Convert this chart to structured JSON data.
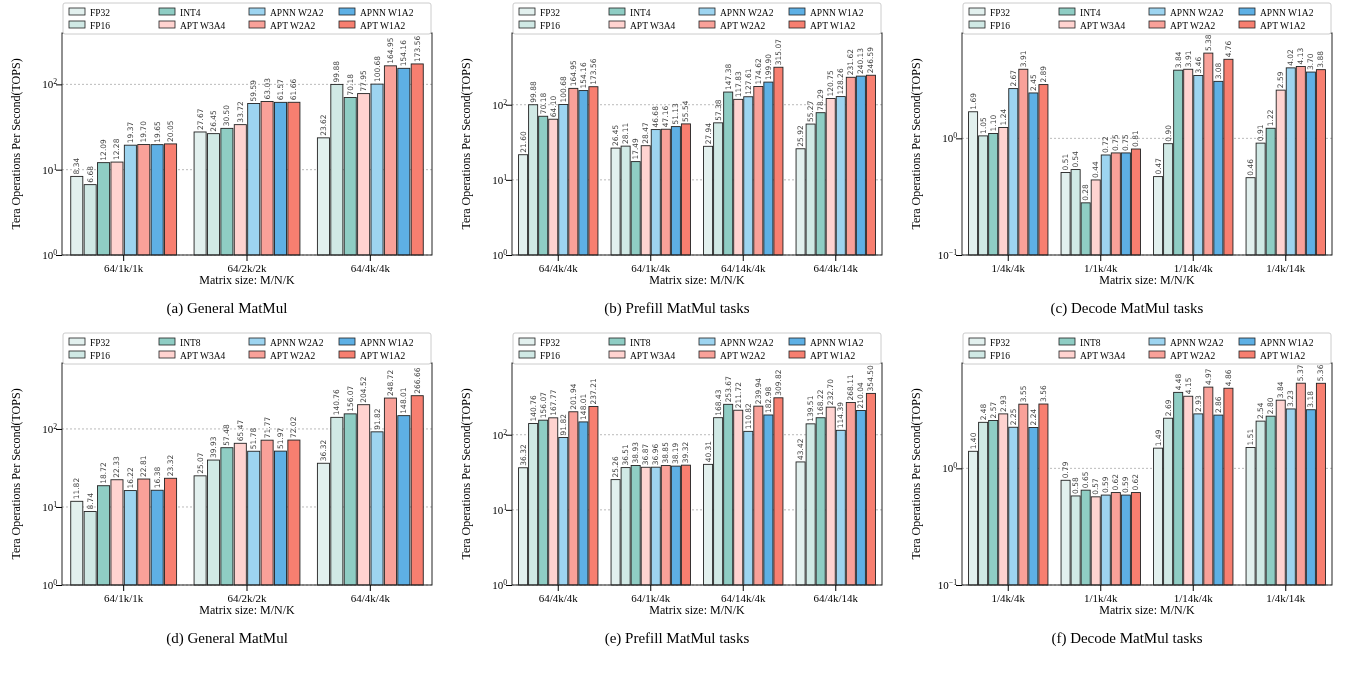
{
  "chart_data": [
    {
      "type": "bar",
      "title": "(a) General MatMul",
      "xlabel": "Matrix size: M/N/K",
      "ylabel": "Tera Operations Per Second(TOPS)",
      "categories": [
        "64/1k/1k",
        "64/2k/2k",
        "64/4k/4k"
      ],
      "log": true,
      "ylim": [
        1,
        400
      ],
      "yticks": [
        {
          "value": 1,
          "label": "10$^{0}$"
        },
        {
          "value": 10,
          "label": "10$^{1}$"
        },
        {
          "value": 100,
          "label": "10$^{2}$"
        }
      ],
      "grid": "y",
      "legend": "top",
      "series": [
        {
          "name": "FP32",
          "color": "#e2f0ee",
          "values": [
            8.34,
            27.67,
            23.62
          ],
          "value_labels": [
            "8.34",
            "27.67",
            "23.62"
          ]
        },
        {
          "name": "FP16",
          "color": "#d0e9e5",
          "values": [
            6.68,
            26.45,
            99.88
          ],
          "value_labels": [
            "6.68",
            "26.45",
            "99.88"
          ]
        },
        {
          "name": "INT4",
          "color": "#8fcdc4",
          "values": [
            12.09,
            30.5,
            70.18
          ],
          "value_labels": [
            "12.09",
            "30.50",
            "70.18"
          ]
        },
        {
          "name": "APT W3A4",
          "color": "#ffd3d0",
          "values": [
            12.28,
            33.72,
            77.95
          ],
          "value_labels": [
            "12.28",
            "33.72",
            "77.95"
          ]
        },
        {
          "name": "APNN W2A2",
          "color": "#9dd4f0",
          "values": [
            19.37,
            59.59,
            100.68
          ],
          "value_labels": [
            "19.37",
            "59.59",
            "100.68"
          ]
        },
        {
          "name": "APT W2A2",
          "color": "#f9a199",
          "values": [
            19.7,
            63.03,
            164.95
          ],
          "value_labels": [
            "19.70",
            "63.03",
            "164.95"
          ]
        },
        {
          "name": "APNN W1A2",
          "color": "#5eb0e5",
          "values": [
            19.65,
            61.57,
            154.16
          ],
          "value_labels": [
            "19.65",
            "61.57",
            "154.16"
          ]
        },
        {
          "name": "APT W1A2",
          "color": "#f77f70",
          "values": [
            20.05,
            61.66,
            173.56
          ],
          "value_labels": [
            "20.05",
            "61.66",
            "173.56"
          ]
        }
      ]
    },
    {
      "type": "bar",
      "title": "(b) Prefill MatMul tasks",
      "xlabel": "Matrix size: M/N/K",
      "ylabel": "Tera Operations Per Second(TOPS)",
      "categories": [
        "64/4k/4k",
        "64/1k/4k",
        "64/14k/4k",
        "64/4k/14k"
      ],
      "log": true,
      "ylim": [
        1,
        900
      ],
      "yticks": [
        {
          "value": 1,
          "label": "10$^{0}$"
        },
        {
          "value": 10,
          "label": "10$^{1}$"
        },
        {
          "value": 100,
          "label": "10$^{2}$"
        }
      ],
      "grid": "y",
      "legend": "top",
      "series": [
        {
          "name": "FP32",
          "color": "#e2f0ee",
          "values": [
            21.6,
            26.45,
            27.94,
            25.92
          ],
          "value_labels": [
            "21.60",
            "26.45",
            "27.94",
            "25.92"
          ]
        },
        {
          "name": "FP16",
          "color": "#d0e9e5",
          "values": [
            99.88,
            28.11,
            57.38,
            55.27
          ],
          "value_labels": [
            "99.88",
            "28.11",
            "57.38",
            "55.27"
          ]
        },
        {
          "name": "INT4",
          "color": "#8fcdc4",
          "values": [
            70.18,
            17.49,
            147.38,
            78.29
          ],
          "value_labels": [
            "70.18",
            "17.49",
            "147.38",
            "78.29"
          ]
        },
        {
          "name": "APT W3A4",
          "color": "#ffd3d0",
          "values": [
            64.1,
            28.47,
            117.83,
            120.75
          ],
          "value_labels": [
            "64.10",
            "28.47",
            "117.83",
            "120.75"
          ]
        },
        {
          "name": "APNN W2A2",
          "color": "#9dd4f0",
          "values": [
            100.68,
            46.68,
            127.61,
            128.26
          ],
          "value_labels": [
            "100.68",
            "46.68",
            "127.61",
            "128.26"
          ]
        },
        {
          "name": "APT W2A2",
          "color": "#f9a199",
          "values": [
            164.95,
            47.16,
            174.62,
            231.62
          ],
          "value_labels": [
            "164.95",
            "47.16",
            "174.62",
            "231.62"
          ]
        },
        {
          "name": "APNN W1A2",
          "color": "#5eb0e5",
          "values": [
            154.16,
            51.13,
            199.9,
            240.13
          ],
          "value_labels": [
            "154.16",
            "51.13",
            "199.90",
            "240.13"
          ]
        },
        {
          "name": "APT W1A2",
          "color": "#f77f70",
          "values": [
            173.56,
            55.54,
            315.07,
            246.59
          ],
          "value_labels": [
            "173.56",
            "55.54",
            "315.07",
            "246.59"
          ]
        }
      ]
    },
    {
      "type": "bar",
      "title": "(c) Decode MatMul tasks",
      "xlabel": "Matrix size: M/N/K",
      "ylabel": "Tera Operations Per Second(TOPS)",
      "categories": [
        "1/4k/4k",
        "1/1k/4k",
        "1/14k/4k",
        "1/4k/14k"
      ],
      "log": true,
      "ylim": [
        0.1,
        8
      ],
      "yticks": [
        {
          "value": 0.1,
          "label": "10$^{−1}$"
        },
        {
          "value": 1,
          "label": "10$^{0}$"
        }
      ],
      "grid": "y",
      "legend": "top",
      "series": [
        {
          "name": "FP32",
          "color": "#e2f0ee",
          "values": [
            1.69,
            0.51,
            0.47,
            0.46
          ],
          "value_labels": [
            "1.69",
            "0.51",
            "0.47",
            "0.46"
          ]
        },
        {
          "name": "FP16",
          "color": "#d0e9e5",
          "values": [
            1.05,
            0.54,
            0.9,
            0.91
          ],
          "value_labels": [
            "1.05",
            "0.54",
            "0.90",
            "0.91"
          ]
        },
        {
          "name": "INT4",
          "color": "#8fcdc4",
          "values": [
            1.1,
            0.28,
            3.84,
            1.22
          ],
          "value_labels": [
            "1.10",
            "0.28",
            "3.84",
            "1.22"
          ]
        },
        {
          "name": "APT W3A4",
          "color": "#ffd3d0",
          "values": [
            1.24,
            0.44,
            3.91,
            2.59
          ],
          "value_labels": [
            "1.24",
            "0.44",
            "3.91",
            "2.59"
          ]
        },
        {
          "name": "APNN W2A2",
          "color": "#9dd4f0",
          "values": [
            2.67,
            0.72,
            3.46,
            4.02
          ],
          "value_labels": [
            "2.67",
            "0.72",
            "3.46",
            "4.02"
          ]
        },
        {
          "name": "APT W2A2",
          "color": "#f9a199",
          "values": [
            3.91,
            0.75,
            5.38,
            4.13
          ],
          "value_labels": [
            "3.91",
            "0.75",
            "5.38",
            "4.13"
          ]
        },
        {
          "name": "APNN W1A2",
          "color": "#5eb0e5",
          "values": [
            2.45,
            0.75,
            3.08,
            3.7
          ],
          "value_labels": [
            "2.45",
            "0.75",
            "3.08",
            "3.70"
          ]
        },
        {
          "name": "APT W1A2",
          "color": "#f77f70",
          "values": [
            2.89,
            0.81,
            4.76,
            3.88
          ],
          "value_labels": [
            "2.89",
            "0.81",
            "4.76",
            "3.88"
          ]
        }
      ]
    },
    {
      "type": "bar",
      "title": "(d) General MatMul",
      "xlabel": "Matrix size: M/N/K",
      "ylabel": "Tera Operations Per Second(TOPS)",
      "categories": [
        "64/1k/1k",
        "64/2k/2k",
        "64/4k/4k"
      ],
      "log": true,
      "ylim": [
        1,
        700
      ],
      "yticks": [
        {
          "value": 1,
          "label": "10$^{0}$"
        },
        {
          "value": 10,
          "label": "10$^{1}$"
        },
        {
          "value": 100,
          "label": "10$^{2}$"
        }
      ],
      "grid": "y",
      "legend": "top",
      "series": [
        {
          "name": "FP32",
          "color": "#e2f0ee",
          "values": [
            11.82,
            25.07,
            36.32
          ],
          "value_labels": [
            "11.82",
            "25.07",
            "36.32"
          ]
        },
        {
          "name": "FP16",
          "color": "#d0e9e5",
          "values": [
            8.74,
            39.93,
            140.76
          ],
          "value_labels": [
            "8.74",
            "39.93",
            "140.76"
          ]
        },
        {
          "name": "INT8",
          "color": "#8fcdc4",
          "values": [
            18.72,
            57.48,
            156.07
          ],
          "value_labels": [
            "18.72",
            "57.48",
            "156.07"
          ]
        },
        {
          "name": "APT W3A4",
          "color": "#ffd3d0",
          "values": [
            22.33,
            65.47,
            204.52
          ],
          "value_labels": [
            "22.33",
            "65.47",
            "204.52"
          ]
        },
        {
          "name": "APNN W2A2",
          "color": "#9dd4f0",
          "values": [
            16.22,
            51.78,
            91.82
          ],
          "value_labels": [
            "16.22",
            "51.78",
            "91.82"
          ]
        },
        {
          "name": "APT W2A2",
          "color": "#f9a199",
          "values": [
            22.81,
            71.77,
            248.72
          ],
          "value_labels": [
            "22.81",
            "71.77",
            "248.72"
          ]
        },
        {
          "name": "APNN W1A2",
          "color": "#5eb0e5",
          "values": [
            16.38,
            51.97,
            148.01
          ],
          "value_labels": [
            "16.38",
            "51.97",
            "148.01"
          ]
        },
        {
          "name": "APT W1A2",
          "color": "#f77f70",
          "values": [
            23.32,
            72.02,
            266.66
          ],
          "value_labels": [
            "23.32",
            "72.02",
            "266.66"
          ]
        }
      ]
    },
    {
      "type": "bar",
      "title": "(e) Prefill MatMul tasks",
      "xlabel": "Matrix size: M/N/K",
      "ylabel": "Tera Operations Per Second(TOPS)",
      "categories": [
        "64/4k/4k",
        "64/1k/4k",
        "64/14k/4k",
        "64/4k/14k"
      ],
      "log": true,
      "ylim": [
        1,
        900
      ],
      "yticks": [
        {
          "value": 1,
          "label": "10$^{0}$"
        },
        {
          "value": 10,
          "label": "10$^{1}$"
        },
        {
          "value": 100,
          "label": "10$^{2}$"
        }
      ],
      "grid": "y",
      "legend": "top",
      "series": [
        {
          "name": "FP32",
          "color": "#e2f0ee",
          "values": [
            36.32,
            25.26,
            40.31,
            43.42
          ],
          "value_labels": [
            "36.32",
            "25.26",
            "40.31",
            "43.42"
          ]
        },
        {
          "name": "FP16",
          "color": "#d0e9e5",
          "values": [
            140.76,
            36.51,
            168.43,
            139.51
          ],
          "value_labels": [
            "140.76",
            "36.51",
            "168.43",
            "139.51"
          ]
        },
        {
          "name": "INT8",
          "color": "#8fcdc4",
          "values": [
            156.07,
            38.93,
            253.67,
            168.22
          ],
          "value_labels": [
            "156.07",
            "38.93",
            "253.67",
            "168.22"
          ]
        },
        {
          "name": "APT W3A4",
          "color": "#ffd3d0",
          "values": [
            167.77,
            36.87,
            211.72,
            232.7
          ],
          "value_labels": [
            "167.77",
            "36.87",
            "211.72",
            "232.70"
          ]
        },
        {
          "name": "APNN W2A2",
          "color": "#9dd4f0",
          "values": [
            91.82,
            36.96,
            110.82,
            114.39
          ],
          "value_labels": [
            "91.82",
            "36.96",
            "110.82",
            "114.39"
          ]
        },
        {
          "name": "APT W2A2",
          "color": "#f9a199",
          "values": [
            201.94,
            38.85,
            239.94,
            268.11
          ],
          "value_labels": [
            "201.94",
            "38.85",
            "239.94",
            "268.11"
          ]
        },
        {
          "name": "APNN W1A2",
          "color": "#5eb0e5",
          "values": [
            148.01,
            38.19,
            182.98,
            210.04
          ],
          "value_labels": [
            "148.01",
            "38.19",
            "182.98",
            "210.04"
          ]
        },
        {
          "name": "APT W1A2",
          "color": "#f77f70",
          "values": [
            237.21,
            39.32,
            309.82,
            354.5
          ],
          "value_labels": [
            "237.21",
            "39.32",
            "309.82",
            "354.50"
          ]
        }
      ]
    },
    {
      "type": "bar",
      "title": "(f) Decode MatMul tasks",
      "xlabel": "Matrix size: M/N/K",
      "ylabel": "Tera Operations Per Second(TOPS)",
      "categories": [
        "1/4k/4k",
        "1/1k/4k",
        "1/14k/4k",
        "1/4k/14k"
      ],
      "log": true,
      "ylim": [
        0.1,
        8
      ],
      "yticks": [
        {
          "value": 0.1,
          "label": "10$^{−1}$"
        },
        {
          "value": 1,
          "label": "10$^{0}$"
        }
      ],
      "grid": "y",
      "legend": "top",
      "series": [
        {
          "name": "FP32",
          "color": "#e2f0ee",
          "values": [
            1.4,
            0.79,
            1.49,
            1.51
          ],
          "value_labels": [
            "1.40",
            "0.79",
            "1.49",
            "1.51"
          ]
        },
        {
          "name": "FP16",
          "color": "#d0e9e5",
          "values": [
            2.48,
            0.58,
            2.69,
            2.54
          ],
          "value_labels": [
            "2.48",
            "0.58",
            "2.69",
            "2.54"
          ]
        },
        {
          "name": "INT8",
          "color": "#8fcdc4",
          "values": [
            2.57,
            0.65,
            4.48,
            2.8
          ],
          "value_labels": [
            "2.57",
            "0.65",
            "4.48",
            "2.80"
          ]
        },
        {
          "name": "APT W3A4",
          "color": "#ffd3d0",
          "values": [
            2.93,
            0.57,
            4.15,
            3.84
          ],
          "value_labels": [
            "2.93",
            "0.57",
            "4.15",
            "3.84"
          ]
        },
        {
          "name": "APNN W2A2",
          "color": "#9dd4f0",
          "values": [
            2.25,
            0.59,
            2.93,
            3.23
          ],
          "value_labels": [
            "2.25",
            "0.59",
            "2.93",
            "3.23"
          ]
        },
        {
          "name": "APT W2A2",
          "color": "#f9a199",
          "values": [
            3.55,
            0.62,
            4.97,
            5.37
          ],
          "value_labels": [
            "3.55",
            "0.62",
            "4.97",
            "5.37"
          ]
        },
        {
          "name": "APNN W1A2",
          "color": "#5eb0e5",
          "values": [
            2.24,
            0.59,
            2.86,
            3.18
          ],
          "value_labels": [
            "2.24",
            "0.59",
            "2.86",
            "3.18"
          ]
        },
        {
          "name": "APT W1A2",
          "color": "#f77f70",
          "values": [
            3.56,
            0.62,
            4.86,
            5.36
          ],
          "value_labels": [
            "3.56",
            "0.62",
            "4.86",
            "5.36"
          ]
        }
      ]
    }
  ]
}
